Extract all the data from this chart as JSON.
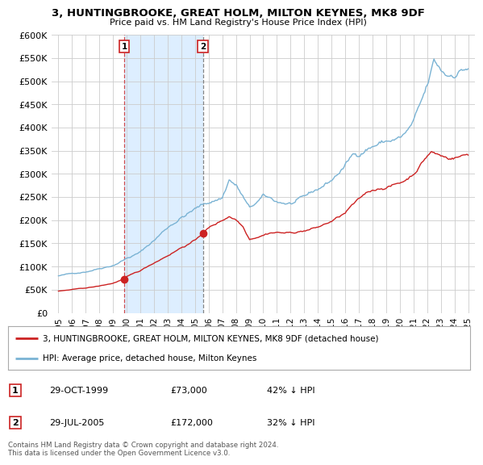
{
  "title": "3, HUNTINGBROOKE, GREAT HOLM, MILTON KEYNES, MK8 9DF",
  "subtitle": "Price paid vs. HM Land Registry's House Price Index (HPI)",
  "legend_line1": "3, HUNTINGBROOKE, GREAT HOLM, MILTON KEYNES, MK8 9DF (detached house)",
  "legend_line2": "HPI: Average price, detached house, Milton Keynes",
  "footnote": "Contains HM Land Registry data © Crown copyright and database right 2024.\nThis data is licensed under the Open Government Licence v3.0.",
  "table": [
    {
      "num": "1",
      "date": "29-OCT-1999",
      "price": "£73,000",
      "hpi": "42% ↓ HPI"
    },
    {
      "num": "2",
      "date": "29-JUL-2005",
      "price": "£172,000",
      "hpi": "32% ↓ HPI"
    }
  ],
  "sale1_x": 1999.83,
  "sale1_y": 73000,
  "sale2_x": 2005.58,
  "sale2_y": 172000,
  "hpi_color": "#7ab3d4",
  "price_color": "#cc2222",
  "shade_color": "#ddeeff",
  "bg_color": "#ffffff",
  "grid_color": "#cccccc",
  "ylim": [
    0,
    600000
  ],
  "xlim_start": 1994.5,
  "xlim_end": 2025.5,
  "yticks": [
    0,
    50000,
    100000,
    150000,
    200000,
    250000,
    300000,
    350000,
    400000,
    450000,
    500000,
    550000,
    600000
  ],
  "xtick_years": [
    1995,
    1996,
    1997,
    1998,
    1999,
    2000,
    2001,
    2002,
    2003,
    2004,
    2005,
    2006,
    2007,
    2008,
    2009,
    2010,
    2011,
    2012,
    2013,
    2014,
    2015,
    2016,
    2017,
    2018,
    2019,
    2020,
    2021,
    2022,
    2023,
    2024,
    2025
  ]
}
